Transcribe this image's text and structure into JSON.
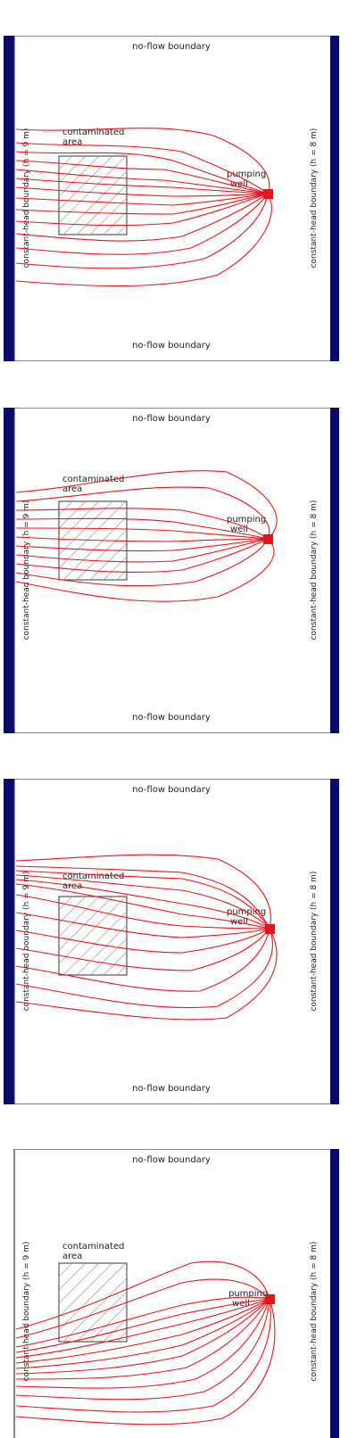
{
  "labels": {
    "top_boundary": "no-flow boundary",
    "bottom_boundary": "no-flow boundary",
    "left_boundary": "constant-head boundary (h = 9 m)",
    "right_boundary": "constant-head boundary (h = 8 m)",
    "area_line1": "contaminated",
    "area_line2": "area",
    "well_line1": "pumping",
    "well_line2": "well"
  },
  "colors": {
    "boundary_band": "#0a0a6b",
    "pathline": "#e8141b",
    "well": "#e8141b",
    "frame": "#333333",
    "hatch": "#999999"
  },
  "icons": {
    "well": "red-square-icon"
  },
  "panels": [
    {
      "id": "panel-1",
      "pathline_count": 14,
      "left_band_visible": true
    },
    {
      "id": "panel-2",
      "pathline_count": 11,
      "left_band_visible": true
    },
    {
      "id": "panel-3",
      "pathline_count": 13,
      "left_band_visible": true
    },
    {
      "id": "panel-4",
      "pathline_count": 13,
      "left_band_visible": false
    }
  ]
}
